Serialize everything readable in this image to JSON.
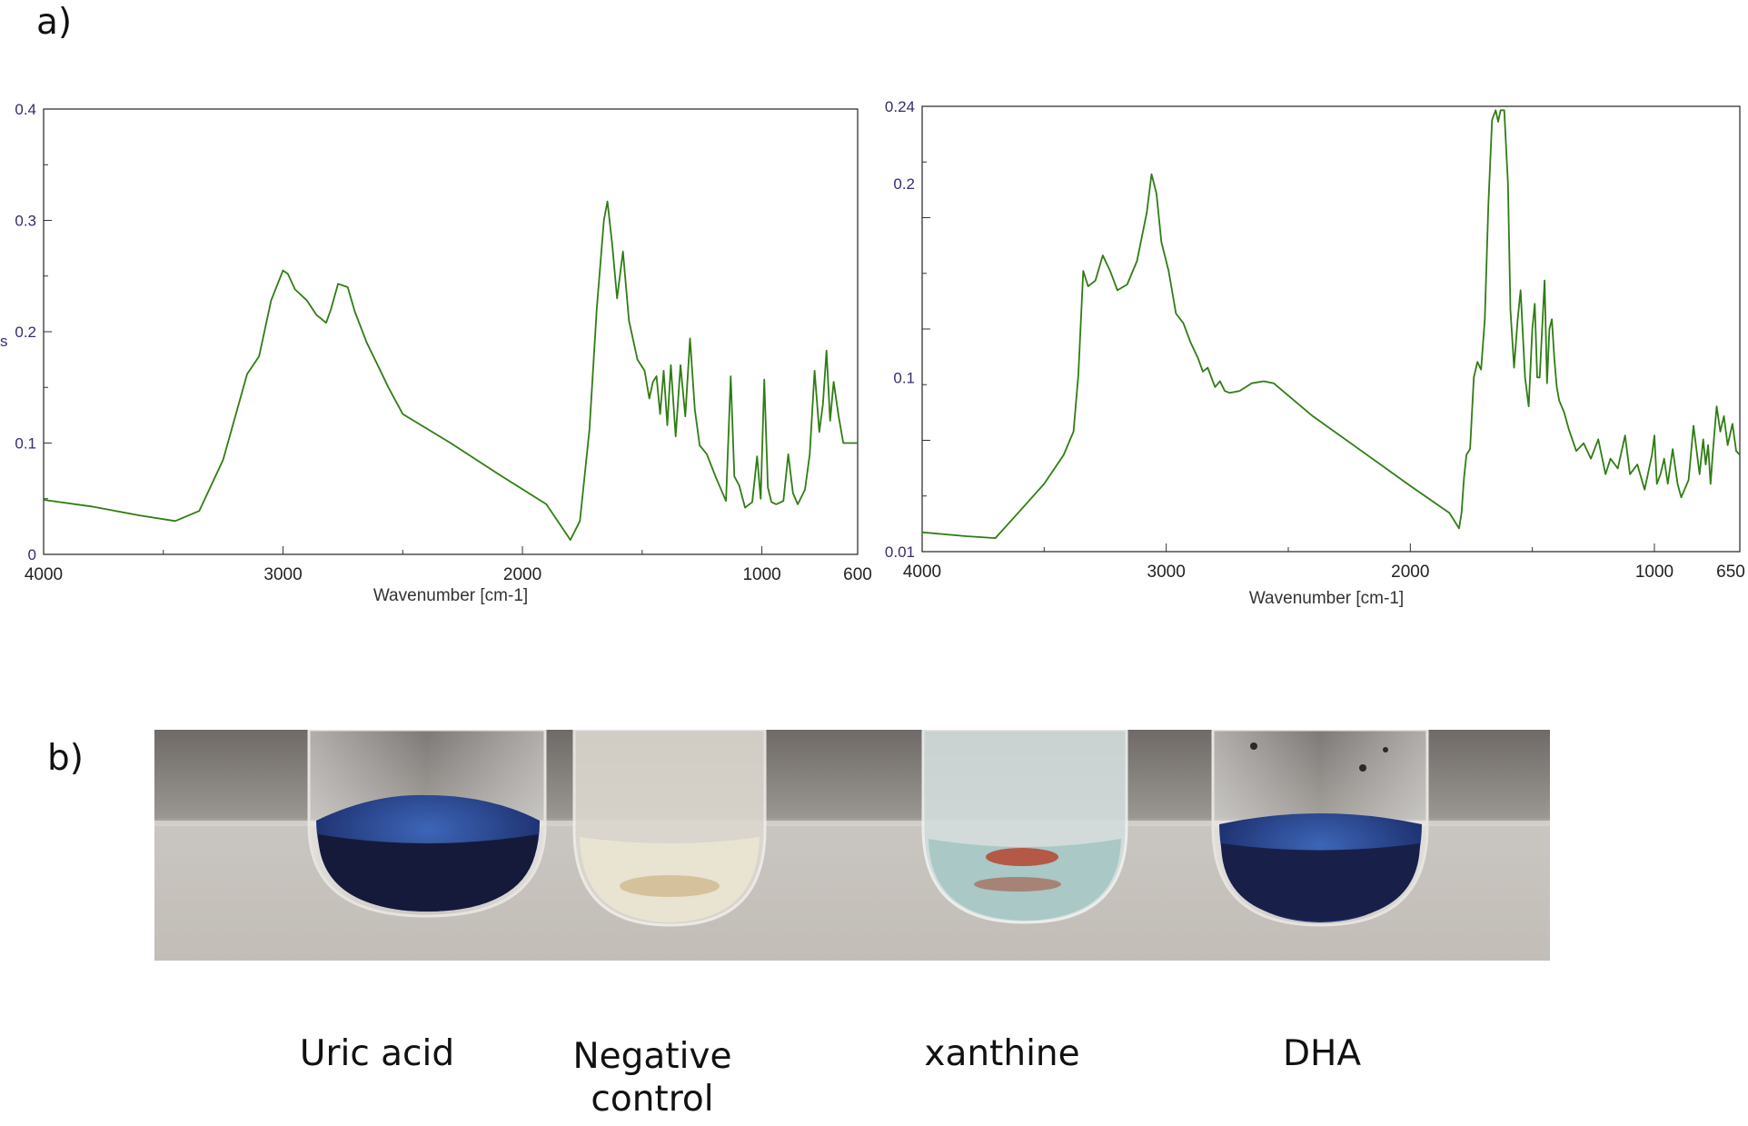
{
  "panel_a_label": "a)",
  "panel_b_label": "b)",
  "chart_data": [
    {
      "type": "line",
      "xlabel": "Wavenumber [cm-1]",
      "ylabel": "s",
      "xlim": [
        4000,
        600
      ],
      "ylim": [
        0,
        0.4
      ],
      "x_ticks": [
        "4000",
        "3000",
        "2000",
        "1000",
        "600"
      ],
      "y_ticks": [
        "0",
        "0.1",
        "0.2",
        "0.3",
        "0.4"
      ],
      "series": [
        {
          "color": "#2f7d14",
          "x": [
            4000,
            3800,
            3600,
            3450,
            3350,
            3250,
            3150,
            3100,
            3050,
            3000,
            2980,
            2950,
            2900,
            2860,
            2820,
            2800,
            2770,
            2730,
            2700,
            2650,
            2600,
            2560,
            2500,
            2300,
            2100,
            1900,
            1800,
            1760,
            1720,
            1690,
            1660,
            1645,
            1625,
            1605,
            1580,
            1555,
            1520,
            1490,
            1470,
            1455,
            1440,
            1425,
            1410,
            1395,
            1380,
            1360,
            1340,
            1320,
            1300,
            1280,
            1260,
            1230,
            1190,
            1150,
            1130,
            1115,
            1095,
            1070,
            1040,
            1020,
            1005,
            990,
            975,
            960,
            940,
            910,
            890,
            870,
            850,
            820,
            800,
            780,
            760,
            745,
            730,
            715,
            700,
            680,
            660,
            640,
            620,
            600
          ],
          "y": [
            0.049,
            0.043,
            0.035,
            0.03,
            0.039,
            0.085,
            0.162,
            0.178,
            0.228,
            0.255,
            0.252,
            0.238,
            0.228,
            0.215,
            0.208,
            0.22,
            0.243,
            0.24,
            0.218,
            0.19,
            0.168,
            0.15,
            0.126,
            0.1,
            0.072,
            0.045,
            0.013,
            0.03,
            0.112,
            0.22,
            0.3,
            0.317,
            0.278,
            0.23,
            0.272,
            0.21,
            0.175,
            0.165,
            0.14,
            0.155,
            0.16,
            0.126,
            0.165,
            0.116,
            0.17,
            0.106,
            0.17,
            0.124,
            0.194,
            0.13,
            0.098,
            0.09,
            0.068,
            0.048,
            0.16,
            0.07,
            0.062,
            0.042,
            0.047,
            0.088,
            0.05,
            0.157,
            0.06,
            0.047,
            0.045,
            0.048,
            0.09,
            0.055,
            0.045,
            0.058,
            0.09,
            0.165,
            0.11,
            0.135,
            0.183,
            0.12,
            0.155,
            0.125,
            0.1,
            0.1,
            0.1,
            0.1
          ]
        }
      ]
    },
    {
      "type": "line",
      "xlabel": "Wavenumber [cm-1]",
      "ylabel": "",
      "xlim": [
        4000,
        650
      ],
      "ylim": [
        0.01,
        0.24
      ],
      "x_ticks": [
        "4000",
        "3000",
        "2000",
        "1000",
        "650"
      ],
      "y_ticks": [
        "0.01",
        "0.1",
        "0.2",
        "0.24"
      ],
      "series": [
        {
          "color": "#2f7d14",
          "x": [
            4000,
            3820,
            3700,
            3600,
            3500,
            3420,
            3380,
            3360,
            3340,
            3320,
            3290,
            3260,
            3230,
            3200,
            3160,
            3120,
            3080,
            3060,
            3040,
            3020,
            2990,
            2960,
            2930,
            2900,
            2870,
            2850,
            2830,
            2800,
            2780,
            2760,
            2740,
            2700,
            2650,
            2600,
            2560,
            2400,
            2200,
            2000,
            1840,
            1800,
            1790,
            1780,
            1770,
            1755,
            1740,
            1725,
            1710,
            1695,
            1680,
            1665,
            1650,
            1640,
            1630,
            1615,
            1600,
            1590,
            1575,
            1560,
            1548,
            1530,
            1515,
            1500,
            1490,
            1480,
            1470,
            1460,
            1450,
            1440,
            1430,
            1420,
            1410,
            1400,
            1390,
            1370,
            1350,
            1320,
            1290,
            1260,
            1230,
            1200,
            1180,
            1150,
            1120,
            1100,
            1070,
            1040,
            1010,
            1000,
            990,
            975,
            960,
            945,
            925,
            905,
            890,
            860,
            840,
            815,
            800,
            790,
            780,
            770,
            760,
            745,
            730,
            715,
            700,
            680,
            665,
            650
          ],
          "y": [
            0.02,
            0.018,
            0.017,
            0.031,
            0.045,
            0.06,
            0.072,
            0.101,
            0.155,
            0.147,
            0.15,
            0.163,
            0.155,
            0.145,
            0.148,
            0.16,
            0.185,
            0.205,
            0.195,
            0.17,
            0.155,
            0.133,
            0.128,
            0.118,
            0.11,
            0.103,
            0.105,
            0.095,
            0.098,
            0.093,
            0.092,
            0.093,
            0.097,
            0.098,
            0.097,
            0.08,
            0.062,
            0.044,
            0.03,
            0.022,
            0.03,
            0.048,
            0.06,
            0.063,
            0.1,
            0.108,
            0.104,
            0.13,
            0.19,
            0.233,
            0.238,
            0.232,
            0.238,
            0.238,
            0.2,
            0.135,
            0.105,
            0.13,
            0.145,
            0.1,
            0.085,
            0.125,
            0.138,
            0.1,
            0.1,
            0.125,
            0.15,
            0.097,
            0.125,
            0.13,
            0.11,
            0.095,
            0.088,
            0.082,
            0.073,
            0.062,
            0.066,
            0.058,
            0.068,
            0.05,
            0.058,
            0.053,
            0.07,
            0.05,
            0.055,
            0.042,
            0.06,
            0.07,
            0.045,
            0.05,
            0.058,
            0.045,
            0.063,
            0.045,
            0.038,
            0.047,
            0.075,
            0.05,
            0.068,
            0.055,
            0.065,
            0.045,
            0.062,
            0.085,
            0.072,
            0.08,
            0.065,
            0.076,
            0.062,
            0.06
          ]
        }
      ]
    }
  ],
  "photo": {
    "alt": "four test tubes",
    "tubes": [
      {
        "label": "Uric acid",
        "color": "#1b2353"
      },
      {
        "label": "Negative control",
        "color": "#e8e2cf"
      },
      {
        "label": "xanthine",
        "color": "#bfd7d4"
      },
      {
        "label": "DHA",
        "color": "#1d2a5a"
      }
    ]
  },
  "tube_labels": {
    "uric_acid": "Uric acid",
    "negative_line1": "Negative",
    "negative_line2": "control",
    "xanthine": "xanthine",
    "dha": "DHA"
  }
}
